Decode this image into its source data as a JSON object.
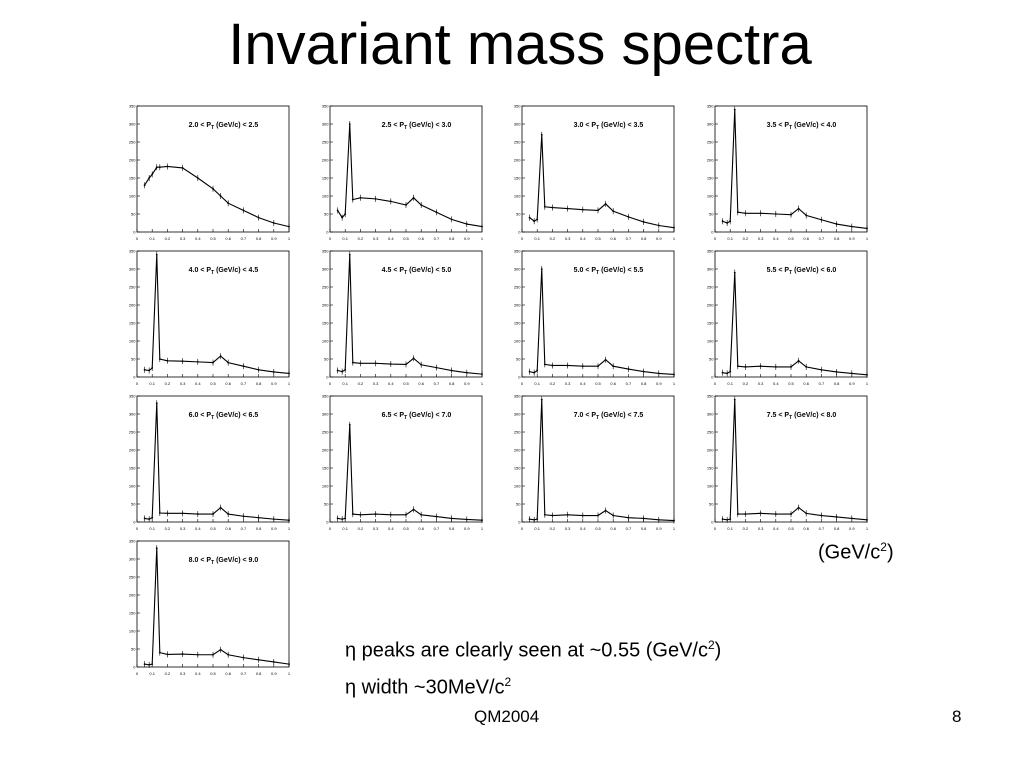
{
  "slide": {
    "title": "Invariant mass spectra",
    "unit_label_prefix": "(GeV/c",
    "unit_label_suffix": ")",
    "superscript": "2",
    "note1_symbol": "η",
    "note1_text": " peaks are clearly seen at ~0.55 (GeV/c",
    "note1_suffix": ")",
    "note2_symbol": "η",
    "note2_text": " width ~30MeV/c",
    "footer_left": "QM2004",
    "footer_right": "8"
  },
  "chart_data": [
    {
      "type": "scatter",
      "title": "2.0 < PT (GeV/c) < 2.5",
      "label_pre": "2.0 < P",
      "label_sub": "T",
      "label_post": " (GeV/c) < 2.5",
      "xlim": [
        0,
        1
      ],
      "ylim": [
        0,
        350
      ],
      "x": [
        0.05,
        0.08,
        0.1,
        0.13,
        0.15,
        0.2,
        0.3,
        0.4,
        0.5,
        0.55,
        0.6,
        0.7,
        0.8,
        0.9,
        1.0
      ],
      "y": [
        130,
        150,
        160,
        180,
        180,
        182,
        178,
        150,
        120,
        100,
        80,
        60,
        40,
        25,
        15
      ]
    },
    {
      "type": "scatter",
      "title": "2.5 < PT (GeV/c) < 3.0",
      "label_pre": "2.5 < P",
      "label_sub": "T",
      "label_post": " (GeV/c) < 3.0",
      "xlim": [
        0,
        1
      ],
      "ylim": [
        0,
        350
      ],
      "x": [
        0.05,
        0.08,
        0.1,
        0.13,
        0.15,
        0.2,
        0.3,
        0.4,
        0.5,
        0.55,
        0.6,
        0.7,
        0.8,
        0.9,
        1.0
      ],
      "y": [
        60,
        40,
        50,
        300,
        90,
        95,
        92,
        85,
        75,
        95,
        75,
        55,
        35,
        22,
        15
      ]
    },
    {
      "type": "scatter",
      "title": "3.0 < PT (GeV/c) < 3.5",
      "label_pre": "3.0 < P",
      "label_sub": "T",
      "label_post": " (GeV/c) < 3.5",
      "xlim": [
        0,
        1
      ],
      "ylim": [
        0,
        350
      ],
      "x": [
        0.05,
        0.08,
        0.1,
        0.13,
        0.15,
        0.2,
        0.3,
        0.4,
        0.5,
        0.55,
        0.6,
        0.7,
        0.8,
        0.9,
        1.0
      ],
      "y": [
        40,
        30,
        35,
        270,
        70,
        68,
        65,
        62,
        60,
        78,
        58,
        42,
        28,
        18,
        12
      ]
    },
    {
      "type": "scatter",
      "title": "3.5 < PT (GeV/c) < 4.0",
      "label_pre": "3.5 < P",
      "label_sub": "T",
      "label_post": " (GeV/c) < 4.0",
      "xlim": [
        0,
        1
      ],
      "ylim": [
        0,
        350
      ],
      "x": [
        0.05,
        0.08,
        0.1,
        0.13,
        0.15,
        0.2,
        0.3,
        0.4,
        0.5,
        0.55,
        0.6,
        0.7,
        0.8,
        0.9,
        1.0
      ],
      "y": [
        30,
        25,
        30,
        340,
        55,
        52,
        52,
        50,
        48,
        65,
        46,
        34,
        22,
        15,
        10
      ]
    },
    {
      "type": "scatter",
      "title": "4.0 < PT (GeV/c) < 4.5",
      "label_pre": "4.0 < P",
      "label_sub": "T",
      "label_post": " (GeV/c) < 4.5",
      "xlim": [
        0,
        1
      ],
      "ylim": [
        0,
        350
      ],
      "x": [
        0.05,
        0.08,
        0.1,
        0.13,
        0.15,
        0.2,
        0.3,
        0.4,
        0.5,
        0.55,
        0.6,
        0.7,
        0.8,
        0.9,
        1.0
      ],
      "y": [
        20,
        18,
        25,
        340,
        50,
        45,
        44,
        42,
        40,
        58,
        40,
        30,
        20,
        14,
        10
      ]
    },
    {
      "type": "scatter",
      "title": "4.5 < PT (GeV/c) < 5.0",
      "label_pre": "4.5 < P",
      "label_sub": "T",
      "label_post": " (GeV/c) < 5.0",
      "xlim": [
        0,
        1
      ],
      "ylim": [
        0,
        350
      ],
      "x": [
        0.05,
        0.08,
        0.1,
        0.13,
        0.15,
        0.2,
        0.3,
        0.4,
        0.5,
        0.55,
        0.6,
        0.7,
        0.8,
        0.9,
        1.0
      ],
      "y": [
        18,
        15,
        20,
        340,
        40,
        38,
        38,
        36,
        35,
        52,
        34,
        26,
        18,
        12,
        8
      ]
    },
    {
      "type": "scatter",
      "title": "5.0 < PT (GeV/c) < 5.5",
      "label_pre": "5.0 < P",
      "label_sub": "T",
      "label_post": " (GeV/c) < 5.5",
      "xlim": [
        0,
        1
      ],
      "ylim": [
        0,
        350
      ],
      "x": [
        0.05,
        0.08,
        0.1,
        0.13,
        0.15,
        0.2,
        0.3,
        0.4,
        0.5,
        0.55,
        0.6,
        0.7,
        0.8,
        0.9,
        1.0
      ],
      "y": [
        15,
        12,
        18,
        300,
        35,
        32,
        32,
        30,
        30,
        48,
        30,
        22,
        15,
        10,
        7
      ]
    },
    {
      "type": "scatter",
      "title": "5.5 < PT (GeV/c) < 6.0",
      "label_pre": "5.5 < P",
      "label_sub": "T",
      "label_post": " (GeV/c) < 6.0",
      "xlim": [
        0,
        1
      ],
      "ylim": [
        0,
        350
      ],
      "x": [
        0.05,
        0.08,
        0.1,
        0.13,
        0.15,
        0.2,
        0.3,
        0.4,
        0.5,
        0.55,
        0.6,
        0.7,
        0.8,
        0.9,
        1.0
      ],
      "y": [
        12,
        10,
        15,
        290,
        30,
        28,
        30,
        28,
        28,
        45,
        28,
        20,
        14,
        10,
        6
      ]
    },
    {
      "type": "scatter",
      "title": "6.0 < PT (GeV/c) < 6.5",
      "label_pre": "6.0 < P",
      "label_sub": "T",
      "label_post": " (GeV/c) < 6.5",
      "xlim": [
        0,
        1
      ],
      "ylim": [
        0,
        350
      ],
      "x": [
        0.05,
        0.08,
        0.1,
        0.13,
        0.15,
        0.2,
        0.3,
        0.4,
        0.5,
        0.55,
        0.6,
        0.7,
        0.8,
        0.9,
        1.0
      ],
      "y": [
        10,
        8,
        12,
        330,
        25,
        24,
        24,
        22,
        22,
        40,
        22,
        16,
        12,
        8,
        5
      ]
    },
    {
      "type": "scatter",
      "title": "6.5 < PT (GeV/c) < 7.0",
      "label_pre": "6.5 < P",
      "label_sub": "T",
      "label_post": " (GeV/c) < 7.0",
      "xlim": [
        0,
        1
      ],
      "ylim": [
        0,
        350
      ],
      "x": [
        0.05,
        0.08,
        0.1,
        0.13,
        0.15,
        0.2,
        0.3,
        0.4,
        0.5,
        0.55,
        0.6,
        0.7,
        0.8,
        0.9,
        1.0
      ],
      "y": [
        10,
        8,
        10,
        270,
        22,
        20,
        22,
        20,
        20,
        35,
        20,
        15,
        10,
        7,
        5
      ]
    },
    {
      "type": "scatter",
      "title": "7.0 < PT (GeV/c) < 7.5",
      "label_pre": "7.0 < P",
      "label_sub": "T",
      "label_post": " (GeV/c) < 7.5",
      "xlim": [
        0,
        1
      ],
      "ylim": [
        0,
        350
      ],
      "x": [
        0.05,
        0.08,
        0.1,
        0.13,
        0.15,
        0.2,
        0.3,
        0.4,
        0.5,
        0.55,
        0.6,
        0.7,
        0.8,
        0.9,
        1.0
      ],
      "y": [
        8,
        6,
        8,
        340,
        20,
        18,
        20,
        18,
        18,
        32,
        18,
        12,
        10,
        6,
        4
      ]
    },
    {
      "type": "scatter",
      "title": "7.5 < PT (GeV/c) < 8.0",
      "label_pre": "7.5 < P",
      "label_sub": "T",
      "label_post": " (GeV/c) < 8.0",
      "xlim": [
        0,
        1
      ],
      "ylim": [
        0,
        350
      ],
      "x": [
        0.05,
        0.08,
        0.1,
        0.13,
        0.15,
        0.2,
        0.3,
        0.4,
        0.5,
        0.55,
        0.6,
        0.7,
        0.8,
        0.9,
        1.0
      ],
      "y": [
        8,
        6,
        8,
        340,
        22,
        22,
        24,
        22,
        22,
        40,
        24,
        18,
        14,
        10,
        6
      ]
    },
    {
      "type": "scatter",
      "title": "8.0 < PT (GeV/c) < 9.0",
      "label_pre": "8.0 < P",
      "label_sub": "T",
      "label_post": " (GeV/c) < 9.0",
      "xlim": [
        0,
        1
      ],
      "ylim": [
        0,
        350
      ],
      "x": [
        0.05,
        0.08,
        0.1,
        0.13,
        0.15,
        0.2,
        0.3,
        0.4,
        0.5,
        0.55,
        0.6,
        0.7,
        0.8,
        0.9,
        1.0
      ],
      "y": [
        8,
        6,
        8,
        330,
        40,
        35,
        36,
        34,
        34,
        48,
        34,
        26,
        20,
        14,
        8
      ]
    }
  ]
}
